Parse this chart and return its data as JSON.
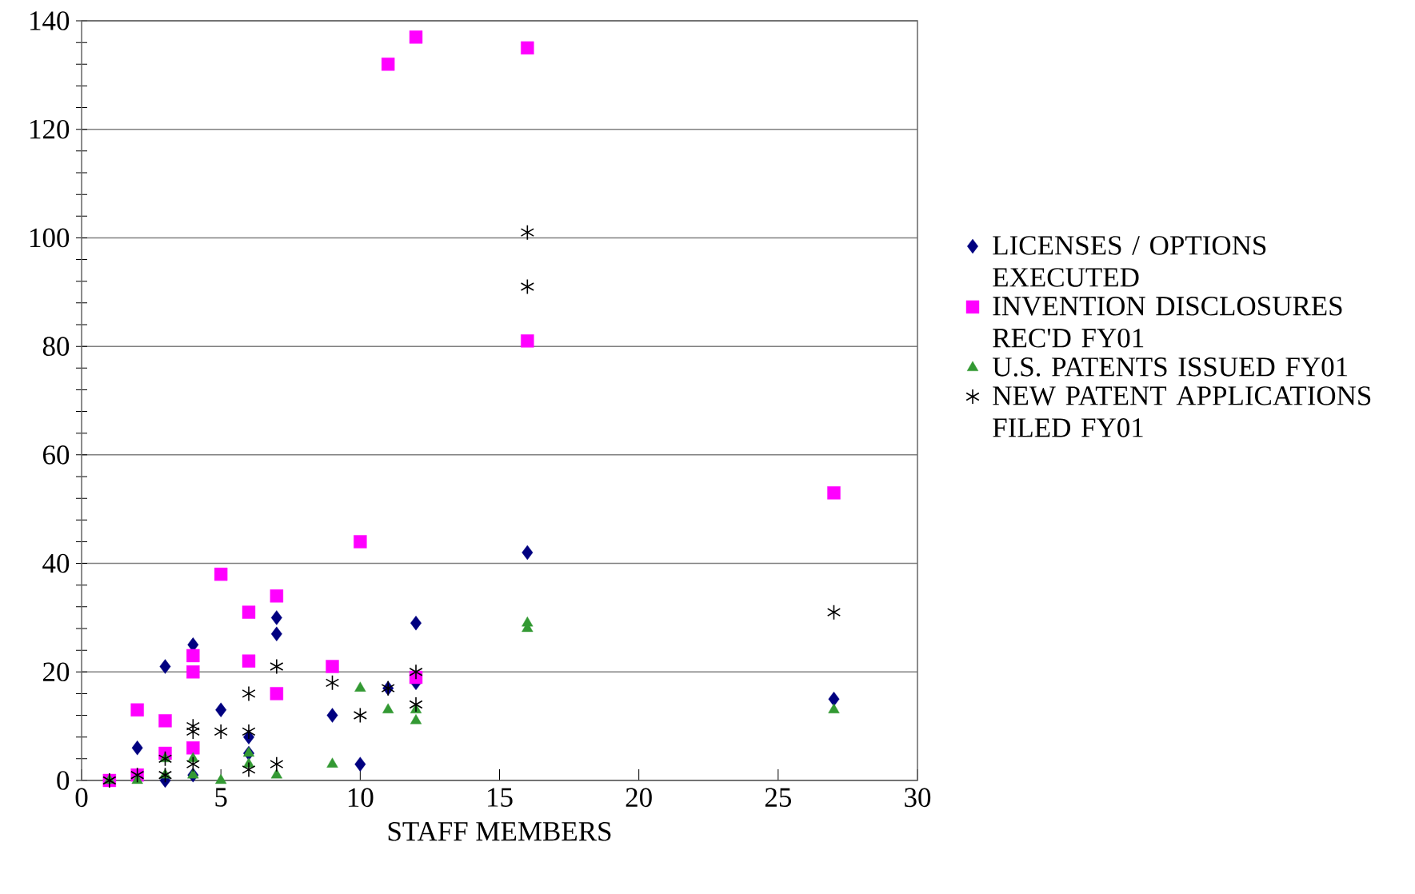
{
  "chart_data": {
    "type": "scatter",
    "xlabel": "STAFF MEMBERS",
    "xlim": [
      0,
      30
    ],
    "xticks": [
      0,
      5,
      10,
      15,
      20,
      25,
      30
    ],
    "ylim": [
      0,
      140
    ],
    "yticks": [
      0,
      20,
      40,
      60,
      80,
      100,
      120,
      140
    ],
    "grid": "y",
    "legend": "right",
    "series": [
      {
        "name": "LICENSES / OPTIONS EXECUTED",
        "color": "#000080",
        "marker": "diamond",
        "x": [
          2,
          3,
          3,
          4,
          4,
          5,
          6,
          6,
          7,
          7,
          9,
          10,
          11,
          12,
          12,
          16,
          27
        ],
        "values": [
          6,
          21,
          0,
          25,
          1,
          13,
          8,
          5,
          30,
          27,
          12,
          3,
          17,
          29,
          18,
          42,
          15
        ]
      },
      {
        "name": "INVENTION DISCLOSURES REC'D FY01",
        "color": "#ff00ff",
        "marker": "square",
        "x": [
          1,
          2,
          2,
          3,
          3,
          4,
          4,
          4,
          5,
          6,
          6,
          7,
          7,
          9,
          10,
          11,
          12,
          12,
          16,
          16,
          27
        ],
        "values": [
          0,
          13,
          1,
          11,
          5,
          23,
          20,
          6,
          38,
          31,
          22,
          34,
          16,
          21,
          44,
          132,
          137,
          19,
          135,
          81,
          53
        ]
      },
      {
        "name": "U.S. PATENTS ISSUED FY01",
        "color": "#339933",
        "marker": "triangle",
        "x": [
          1,
          2,
          3,
          3,
          4,
          4,
          5,
          6,
          6,
          7,
          9,
          10,
          11,
          12,
          12,
          16,
          16,
          27
        ],
        "values": [
          0,
          0,
          4,
          1,
          4,
          1,
          0,
          5,
          3,
          1,
          3,
          17,
          13,
          13,
          11,
          29,
          28,
          13
        ]
      },
      {
        "name": "NEW PATENT APPLICATIONS FILED FY01",
        "color": "#000000",
        "marker": "cross",
        "x": [
          1,
          2,
          3,
          3,
          4,
          4,
          4,
          5,
          6,
          6,
          6,
          7,
          7,
          9,
          10,
          11,
          12,
          12,
          16,
          16,
          27
        ],
        "values": [
          0,
          1,
          4,
          1,
          10,
          9,
          3,
          9,
          16,
          9,
          2,
          21,
          3,
          18,
          12,
          17,
          20,
          14,
          101,
          91,
          31
        ]
      }
    ]
  }
}
